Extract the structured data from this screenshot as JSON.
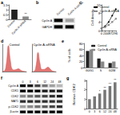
{
  "panel_labels": [
    "a",
    "b",
    "c",
    "d",
    "e",
    "f",
    "g"
  ],
  "chart_data": [
    {
      "type": "bar",
      "categories": [
        "Control",
        "Cyclin A-siRNA"
      ],
      "values": [
        1.0,
        0.3
      ],
      "colors": [
        "#222222",
        "#888888"
      ],
      "ylim": [
        0,
        1.5
      ],
      "yticks": [
        0,
        0.5,
        1,
        1.5
      ],
      "grid": false,
      "annotations": [
        {
          "text": "**",
          "x": "Cyclin A-siRNA"
        }
      ]
    },
    {
      "type": "line",
      "ylabel": "Cell density",
      "xlim": [
        0,
        96
      ],
      "xticks": [
        0,
        24,
        48,
        72,
        96
      ],
      "ylim": [
        0,
        12
      ],
      "yticks": [
        0,
        4,
        8,
        12
      ],
      "grid": false,
      "legend": "upper left",
      "x": [
        0,
        24,
        48,
        72,
        96
      ],
      "series": [
        {
          "name": "Control",
          "color": "#000000",
          "marker": "circle",
          "values": [
            1,
            2,
            4,
            7,
            10
          ]
        },
        {
          "name": "Cyclin A-siRNA",
          "color": "#888888",
          "marker": "square",
          "values": [
            1,
            1.6,
            2.6,
            4,
            5.5
          ]
        }
      ]
    },
    {
      "type": "area",
      "title": "Control",
      "xlim": [
        0,
        12
      ],
      "ylim": [
        0,
        100
      ],
      "tick_labels": false,
      "color": "#d9534f",
      "x": [
        0,
        1,
        2,
        3,
        4,
        5,
        6,
        7,
        8,
        9,
        10,
        11,
        12
      ],
      "values": [
        0,
        2,
        30,
        95,
        40,
        8,
        6,
        8,
        10,
        6,
        2,
        1,
        0
      ]
    },
    {
      "type": "area",
      "title": "Cyclin A-siRNA",
      "xlim": [
        0,
        12
      ],
      "ylim": [
        0,
        100
      ],
      "tick_labels": false,
      "color": "#d9534f",
      "x": [
        0,
        1,
        2,
        3,
        4,
        5,
        6,
        7,
        8,
        9,
        10,
        11,
        12
      ],
      "values": [
        0,
        1,
        20,
        70,
        30,
        8,
        8,
        12,
        16,
        10,
        3,
        1,
        0
      ]
    },
    {
      "type": "bar",
      "ylabel": "% of cells",
      "categories": [
        "G0/G1",
        "S",
        "G2/M"
      ],
      "ylim": [
        0,
        80
      ],
      "yticks": [
        0,
        20,
        40,
        60,
        80
      ],
      "grid": false,
      "legend": "upper right",
      "series": [
        {
          "name": "Control",
          "color": "#222222",
          "values": [
            55,
            30,
            15
          ]
        },
        {
          "name": "Cyclin A-siRNA",
          "color": "#888888",
          "values": [
            60,
            20,
            20
          ]
        }
      ]
    },
    {
      "type": "bar",
      "ylabel": "Relative CDK2",
      "categories": [
        "0",
        "3",
        "6",
        "12",
        "24",
        "48"
      ],
      "values": [
        1,
        1.3,
        1.6,
        2.0,
        2.4,
        2.8
      ],
      "color": "#777777",
      "ylim": [
        0,
        3
      ],
      "yticks": [
        0,
        1,
        2,
        3
      ],
      "grid": false,
      "annotations": [
        {
          "text": "*",
          "x": "6"
        },
        {
          "text": "**",
          "x": "12"
        },
        {
          "text": "**",
          "x": "24"
        },
        {
          "text": "**",
          "x": "48"
        }
      ]
    }
  ],
  "blots": [
    {
      "rows": [
        "Cyclin A",
        "GAPDH"
      ],
      "columns": [
        "Control",
        "Cyclin A-siRNA"
      ],
      "bands": [
        [
          1,
          0.3
        ],
        [
          1,
          1
        ]
      ]
    },
    {
      "rows": [
        "Cyclin A",
        "CDK1",
        "CDK2",
        "MAT1",
        "p-CDK2",
        "β-actin"
      ],
      "columns": [
        "0",
        "3",
        "6",
        "12",
        "24",
        "48"
      ],
      "bands": [
        [
          1,
          0.9,
          0.7,
          0.5,
          0.3,
          0.2
        ],
        [
          1,
          1,
          1,
          0.9,
          0.9,
          0.9
        ],
        [
          0.4,
          0.5,
          0.6,
          0.7,
          0.8,
          0.9
        ],
        [
          0.8,
          0.8,
          0.8,
          0.8,
          0.8,
          0.8
        ],
        [
          0.3,
          0.4,
          0.5,
          0.6,
          0.7,
          0.8
        ],
        [
          1,
          1,
          1,
          1,
          1,
          1
        ]
      ]
    }
  ]
}
